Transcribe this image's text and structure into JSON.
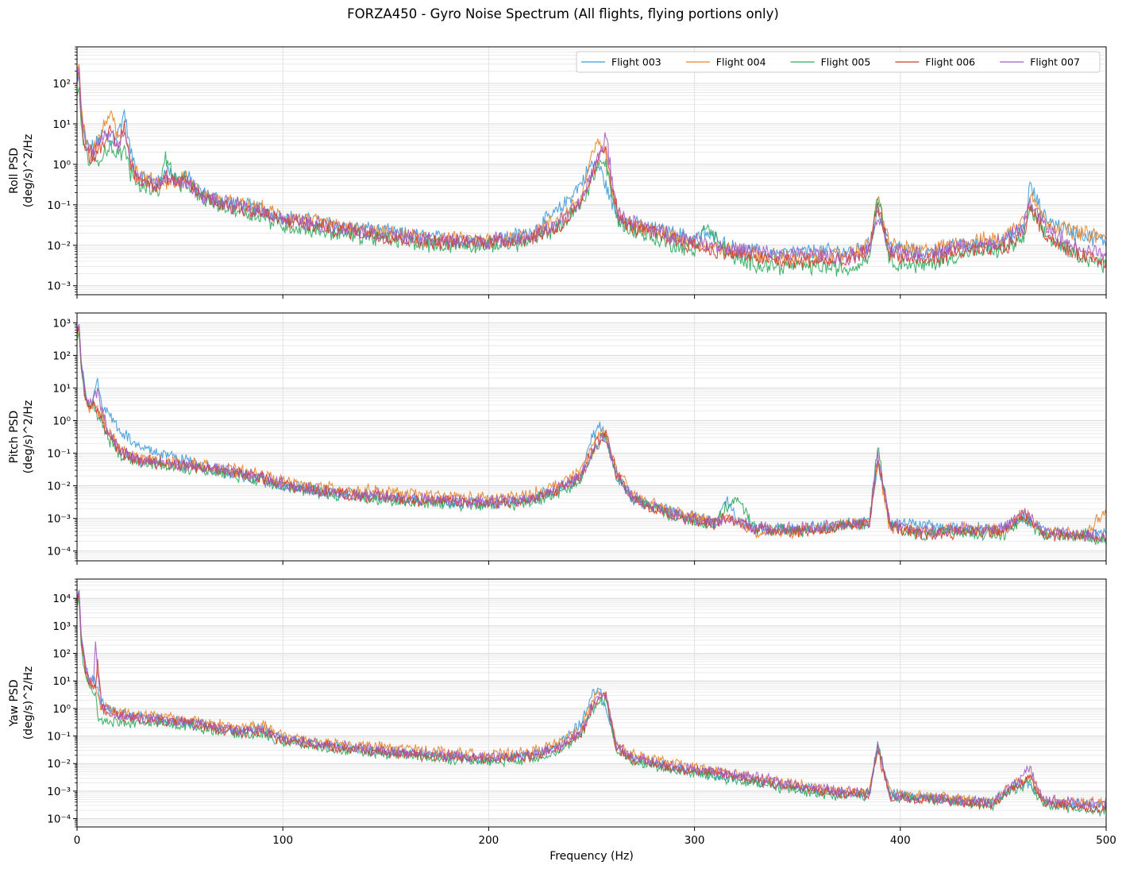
{
  "title": "FORZA450 - Gyro Noise Spectrum (All flights, flying portions only)",
  "xlabel": "Frequency (Hz)",
  "colors": {
    "Flight 003": "#3a9ad9",
    "Flight 004": "#e8832a",
    "Flight 005": "#2eaa5c",
    "Flight 006": "#d03b2e",
    "Flight 007": "#a25bc4"
  },
  "chart_data": [
    {
      "type": "line",
      "panel": "roll",
      "ylabel_lines": [
        "Roll PSD",
        "(deg/s)^2/Hz"
      ],
      "yscale": "log",
      "xlim": [
        0,
        500
      ],
      "ylim": [
        0.0006,
        800
      ],
      "xticks": [
        0,
        100,
        200,
        300,
        400,
        500
      ],
      "xtick_labels": [
        "",
        "",
        "",
        "",
        "",
        ""
      ],
      "yticks": [
        0.001,
        0.01,
        0.1,
        1,
        10,
        100
      ],
      "ytick_labels": [
        "10⁻³",
        "10⁻²",
        "10⁻¹",
        "10⁰",
        "10¹",
        "10²"
      ],
      "grid": true,
      "legend": {
        "placement": "top-right",
        "ncol": 5,
        "entries": [
          "Flight 003",
          "Flight 004",
          "Flight 005",
          "Flight 006",
          "Flight 007"
        ]
      },
      "x": [
        0,
        1,
        2,
        4,
        6,
        9,
        13,
        16,
        20,
        23,
        26,
        30,
        40,
        43,
        50,
        52,
        60,
        70,
        80,
        90,
        100,
        120,
        140,
        160,
        180,
        200,
        220,
        235,
        245,
        250,
        254,
        257,
        260,
        263,
        268,
        280,
        300,
        305,
        320,
        340,
        360,
        375,
        385,
        389,
        395,
        410,
        430,
        450,
        460,
        463,
        470,
        480,
        500
      ],
      "series": [
        {
          "name": "Flight 003",
          "values": [
            100,
            150,
            20,
            4,
            2.5,
            3,
            6,
            3,
            6,
            20,
            2,
            0.5,
            0.35,
            0.8,
            0.4,
            0.6,
            0.2,
            0.13,
            0.1,
            0.08,
            0.05,
            0.035,
            0.025,
            0.018,
            0.014,
            0.013,
            0.02,
            0.08,
            0.35,
            1.0,
            0.8,
            0.3,
            0.1,
            0.05,
            0.035,
            0.025,
            0.015,
            0.02,
            0.008,
            0.006,
            0.007,
            0.007,
            0.01,
            0.08,
            0.01,
            0.006,
            0.01,
            0.012,
            0.03,
            0.3,
            0.05,
            0.025,
            0.012
          ]
        },
        {
          "name": "Flight 004",
          "values": [
            200,
            300,
            30,
            5,
            2.5,
            3,
            8,
            20,
            4,
            8,
            1.5,
            0.5,
            0.35,
            0.4,
            0.35,
            0.5,
            0.2,
            0.12,
            0.1,
            0.08,
            0.05,
            0.035,
            0.022,
            0.017,
            0.014,
            0.013,
            0.018,
            0.05,
            0.15,
            1.5,
            4,
            1.5,
            0.2,
            0.06,
            0.035,
            0.025,
            0.012,
            0.01,
            0.007,
            0.005,
            0.005,
            0.006,
            0.01,
            0.15,
            0.01,
            0.007,
            0.012,
            0.015,
            0.05,
            0.2,
            0.04,
            0.025,
            0.015
          ]
        },
        {
          "name": "Flight 005",
          "values": [
            50,
            80,
            10,
            2,
            1.2,
            1.0,
            2,
            3,
            1.5,
            2.5,
            0.6,
            0.3,
            0.25,
            1.5,
            0.25,
            0.4,
            0.15,
            0.09,
            0.07,
            0.05,
            0.03,
            0.022,
            0.016,
            0.012,
            0.01,
            0.01,
            0.012,
            0.03,
            0.1,
            0.4,
            1.2,
            1.0,
            0.15,
            0.04,
            0.025,
            0.015,
            0.007,
            0.03,
            0.004,
            0.003,
            0.003,
            0.0025,
            0.005,
            0.2,
            0.004,
            0.003,
            0.006,
            0.008,
            0.015,
            0.08,
            0.02,
            0.008,
            0.003
          ]
        },
        {
          "name": "Flight 006",
          "values": [
            120,
            200,
            15,
            3,
            1.5,
            1.8,
            4,
            6,
            2.5,
            10,
            1.0,
            0.4,
            0.3,
            0.5,
            0.3,
            0.4,
            0.18,
            0.1,
            0.08,
            0.06,
            0.04,
            0.028,
            0.02,
            0.014,
            0.012,
            0.012,
            0.015,
            0.03,
            0.1,
            0.5,
            1.5,
            3,
            0.3,
            0.05,
            0.03,
            0.02,
            0.01,
            0.008,
            0.006,
            0.004,
            0.004,
            0.004,
            0.008,
            0.1,
            0.006,
            0.004,
            0.007,
            0.008,
            0.02,
            0.1,
            0.02,
            0.008,
            0.004
          ]
        },
        {
          "name": "Flight 007",
          "values": [
            150,
            250,
            18,
            4,
            2,
            2.5,
            5,
            5,
            3,
            6,
            1.2,
            0.45,
            0.3,
            0.5,
            0.3,
            0.4,
            0.18,
            0.11,
            0.09,
            0.07,
            0.045,
            0.03,
            0.022,
            0.016,
            0.013,
            0.013,
            0.016,
            0.04,
            0.12,
            0.6,
            2,
            5,
            0.4,
            0.06,
            0.04,
            0.025,
            0.013,
            0.012,
            0.008,
            0.006,
            0.006,
            0.005,
            0.008,
            0.05,
            0.007,
            0.006,
            0.01,
            0.012,
            0.03,
            0.12,
            0.03,
            0.012,
            0.006
          ]
        }
      ]
    },
    {
      "type": "line",
      "panel": "pitch",
      "ylabel_lines": [
        "Pitch PSD",
        "(deg/s)^2/Hz"
      ],
      "yscale": "log",
      "xlim": [
        0,
        500
      ],
      "ylim": [
        5e-05,
        2000
      ],
      "xticks": [
        0,
        100,
        200,
        300,
        400,
        500
      ],
      "xtick_labels": [
        "",
        "",
        "",
        "",
        "",
        ""
      ],
      "yticks": [
        0.0001,
        0.001,
        0.01,
        0.1,
        1,
        10,
        100,
        1000
      ],
      "ytick_labels": [
        "10⁻⁴",
        "10⁻³",
        "10⁻²",
        "10⁻¹",
        "10⁰",
        "10¹",
        "10²",
        "10³"
      ],
      "grid": true,
      "x": [
        0,
        1,
        2,
        4,
        6,
        8,
        10,
        12,
        15,
        20,
        30,
        50,
        70,
        90,
        110,
        140,
        170,
        200,
        220,
        235,
        245,
        250,
        254,
        257,
        262,
        270,
        290,
        310,
        315,
        320,
        330,
        350,
        370,
        385,
        389,
        395,
        410,
        430,
        450,
        460,
        470,
        490,
        500
      ],
      "series": [
        {
          "name": "Flight 003",
          "values": [
            500,
            800,
            60,
            8,
            3,
            4,
            20,
            3,
            2,
            0.6,
            0.15,
            0.07,
            0.03,
            0.015,
            0.008,
            0.005,
            0.0035,
            0.003,
            0.004,
            0.008,
            0.02,
            0.3,
            0.8,
            0.3,
            0.02,
            0.004,
            0.0015,
            0.0008,
            0.004,
            0.001,
            0.0005,
            0.0005,
            0.0006,
            0.0008,
            0.05,
            0.0008,
            0.0006,
            0.0005,
            0.0005,
            0.001,
            0.0004,
            0.0003,
            0.0004
          ]
        },
        {
          "name": "Flight 004",
          "values": [
            400,
            700,
            50,
            5,
            2.5,
            3,
            2,
            1.5,
            0.5,
            0.15,
            0.07,
            0.05,
            0.035,
            0.02,
            0.01,
            0.007,
            0.005,
            0.004,
            0.005,
            0.012,
            0.03,
            0.15,
            0.5,
            0.3,
            0.03,
            0.005,
            0.0015,
            0.0008,
            0.001,
            0.0008,
            0.0004,
            0.0004,
            0.0006,
            0.0008,
            0.05,
            0.0005,
            0.0004,
            0.0005,
            0.0004,
            0.0015,
            0.0004,
            0.0003,
            0.002
          ]
        },
        {
          "name": "Flight 005",
          "values": [
            300,
            500,
            40,
            4,
            2,
            2.5,
            1.5,
            1,
            0.3,
            0.1,
            0.05,
            0.04,
            0.025,
            0.015,
            0.007,
            0.004,
            0.003,
            0.0025,
            0.003,
            0.007,
            0.015,
            0.08,
            0.25,
            0.3,
            0.02,
            0.004,
            0.0012,
            0.0006,
            0.002,
            0.004,
            0.0005,
            0.0004,
            0.0006,
            0.0007,
            0.15,
            0.0006,
            0.0003,
            0.0004,
            0.0003,
            0.001,
            0.0003,
            0.0003,
            0.0002
          ]
        },
        {
          "name": "Flight 006",
          "values": [
            450,
            750,
            55,
            6,
            2.5,
            3,
            2,
            1.2,
            0.4,
            0.12,
            0.06,
            0.045,
            0.03,
            0.018,
            0.008,
            0.005,
            0.0035,
            0.003,
            0.0035,
            0.008,
            0.02,
            0.1,
            0.3,
            0.4,
            0.025,
            0.004,
            0.0012,
            0.0007,
            0.001,
            0.0008,
            0.0005,
            0.0004,
            0.0005,
            0.0007,
            0.08,
            0.0006,
            0.0003,
            0.0004,
            0.0004,
            0.0012,
            0.0003,
            0.0003,
            0.0002
          ]
        },
        {
          "name": "Flight 007",
          "values": [
            600,
            900,
            70,
            7,
            3,
            4,
            8,
            2,
            0.5,
            0.14,
            0.06,
            0.045,
            0.03,
            0.018,
            0.008,
            0.005,
            0.004,
            0.003,
            0.004,
            0.009,
            0.02,
            0.1,
            0.3,
            0.3,
            0.025,
            0.0045,
            0.0013,
            0.0007,
            0.001,
            0.0008,
            0.0005,
            0.0005,
            0.0006,
            0.0008,
            0.1,
            0.0007,
            0.0004,
            0.0005,
            0.0005,
            0.0015,
            0.0004,
            0.0003,
            0.0003
          ]
        }
      ]
    },
    {
      "type": "line",
      "panel": "yaw",
      "ylabel_lines": [
        "Yaw PSD",
        "(deg/s)^2/Hz"
      ],
      "yscale": "log",
      "xlim": [
        0,
        500
      ],
      "ylim": [
        5e-05,
        50000
      ],
      "xticks": [
        0,
        100,
        200,
        300,
        400,
        500
      ],
      "xtick_labels": [
        "0",
        "100",
        "200",
        "300",
        "400",
        "500"
      ],
      "yticks": [
        0.0001,
        0.001,
        0.01,
        0.1,
        1,
        10,
        100,
        1000,
        10000
      ],
      "ytick_labels": [
        "10⁻⁴",
        "10⁻³",
        "10⁻²",
        "10⁻¹",
        "10⁰",
        "10¹",
        "10²",
        "10³",
        "10⁴"
      ],
      "grid": true,
      "x": [
        0,
        1,
        2,
        4,
        6,
        8,
        9,
        10,
        12,
        20,
        40,
        60,
        80,
        90,
        100,
        130,
        160,
        200,
        220,
        235,
        245,
        250,
        254,
        257,
        262,
        270,
        290,
        320,
        345,
        370,
        385,
        389,
        395,
        420,
        445,
        455,
        463,
        470,
        500
      ],
      "series": [
        {
          "name": "Flight 003",
          "values": [
            10000,
            20000,
            500,
            40,
            10,
            10,
            8,
            6,
            1.5,
            0.6,
            0.4,
            0.3,
            0.15,
            0.2,
            0.08,
            0.04,
            0.025,
            0.015,
            0.02,
            0.05,
            0.3,
            3,
            5,
            1,
            0.04,
            0.015,
            0.007,
            0.003,
            0.0015,
            0.0008,
            0.0008,
            0.05,
            0.0008,
            0.0005,
            0.0004,
            0.0015,
            0.002,
            0.0004,
            0.0003
          ]
        },
        {
          "name": "Flight 004",
          "values": [
            8000,
            15000,
            400,
            30,
            8,
            8,
            6,
            3,
            1.2,
            0.8,
            0.5,
            0.35,
            0.2,
            0.25,
            0.1,
            0.05,
            0.035,
            0.02,
            0.025,
            0.06,
            0.2,
            1.5,
            4,
            3,
            0.06,
            0.02,
            0.01,
            0.004,
            0.002,
            0.001,
            0.001,
            0.04,
            0.0008,
            0.0006,
            0.0004,
            0.002,
            0.004,
            0.0004,
            0.0004
          ]
        },
        {
          "name": "Flight 005",
          "values": [
            5000,
            10000,
            200,
            15,
            5,
            5,
            3,
            0.6,
            0.4,
            0.3,
            0.3,
            0.2,
            0.12,
            0.12,
            0.06,
            0.03,
            0.02,
            0.012,
            0.015,
            0.03,
            0.1,
            0.8,
            2,
            2,
            0.03,
            0.012,
            0.006,
            0.0025,
            0.0012,
            0.0007,
            0.0007,
            0.05,
            0.0006,
            0.0005,
            0.0003,
            0.0012,
            0.002,
            0.0003,
            0.0002
          ]
        },
        {
          "name": "Flight 006",
          "values": [
            7000,
            14000,
            300,
            25,
            7,
            7,
            5,
            50,
            1,
            0.5,
            0.35,
            0.25,
            0.13,
            0.14,
            0.07,
            0.035,
            0.022,
            0.014,
            0.018,
            0.04,
            0.12,
            1,
            2.5,
            3,
            0.04,
            0.014,
            0.007,
            0.0035,
            0.0015,
            0.0008,
            0.0008,
            0.03,
            0.0006,
            0.0005,
            0.0003,
            0.0015,
            0.003,
            0.0004,
            0.0002
          ]
        },
        {
          "name": "Flight 007",
          "values": [
            9000,
            18000,
            450,
            35,
            9,
            9,
            300,
            20,
            1.2,
            0.55,
            0.4,
            0.28,
            0.15,
            0.16,
            0.08,
            0.04,
            0.025,
            0.016,
            0.02,
            0.045,
            0.15,
            1.2,
            3,
            3.5,
            0.05,
            0.016,
            0.008,
            0.004,
            0.002,
            0.001,
            0.0009,
            0.05,
            0.0007,
            0.0005,
            0.0004,
            0.002,
            0.006,
            0.0005,
            0.0003
          ]
        }
      ]
    }
  ]
}
